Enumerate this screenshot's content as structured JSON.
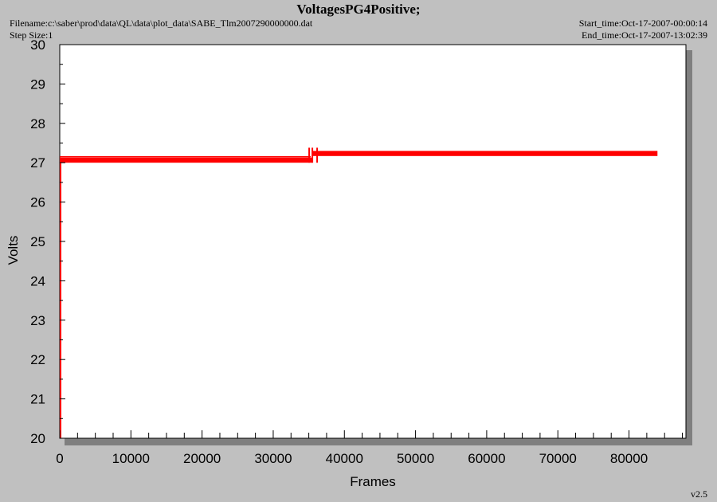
{
  "title": "VoltagesPG4Positive;",
  "meta": {
    "filename_label": "Filename:",
    "filename_value": "c:\\saber\\prod\\data\\QL\\data\\plot_data\\SABE_Tlm2007290000000.dat",
    "step_label": "Step Size:",
    "step_value": "1",
    "start_label": "Start_time:",
    "start_value": "Oct-17-2007-00:00:14",
    "end_label": "End_time:",
    "end_value": "Oct-17-2007-13:02:39"
  },
  "version": "v2.5",
  "colors": {
    "series": "#ff0000",
    "plot_bg": "#ffffff",
    "page_bg": "#c0c0c0",
    "shadow": "#7f7f7f"
  },
  "chart_data": {
    "type": "line",
    "xlabel": "Frames",
    "ylabel": "Volts",
    "xlim": [
      0,
      88000
    ],
    "ylim": [
      20,
      30
    ],
    "x_ticks": [
      0,
      10000,
      20000,
      30000,
      40000,
      50000,
      60000,
      70000,
      80000
    ],
    "y_ticks": [
      20,
      21,
      22,
      23,
      24,
      25,
      26,
      27,
      28,
      29,
      30
    ],
    "grid": false,
    "series": [
      {
        "segments": [
          {
            "x_start": 0,
            "x_end": 35500,
            "y_min": 27.0,
            "y_max": 27.13
          },
          {
            "x_start": 35500,
            "x_end": 84000,
            "y_min": 27.17,
            "y_max": 27.3
          }
        ],
        "initial_drop": {
          "x": 0,
          "y_from": 27.1,
          "y_to": 20.0
        }
      }
    ]
  }
}
